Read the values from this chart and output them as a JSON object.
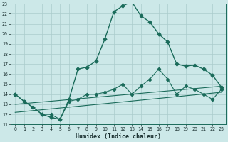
{
  "xlabel": "Humidex (Indice chaleur)",
  "bg_color": "#cce8e8",
  "grid_color": "#aacccc",
  "line_color": "#1a6b5a",
  "xlim": [
    -0.5,
    23.5
  ],
  "ylim": [
    11,
    23
  ],
  "xticks": [
    0,
    1,
    2,
    3,
    4,
    5,
    6,
    7,
    8,
    9,
    10,
    11,
    12,
    13,
    14,
    15,
    16,
    17,
    18,
    19,
    20,
    21,
    22,
    23
  ],
  "yticks": [
    11,
    12,
    13,
    14,
    15,
    16,
    17,
    18,
    19,
    20,
    21,
    22,
    23
  ],
  "series_main_x": [
    0,
    1,
    2,
    3,
    4,
    5,
    6,
    7,
    8,
    9,
    10,
    11,
    12,
    13,
    14,
    15,
    16,
    17,
    18,
    19,
    20,
    21,
    22,
    23
  ],
  "series_main_y": [
    14.0,
    13.3,
    12.7,
    12.0,
    11.7,
    11.5,
    13.5,
    16.5,
    16.7,
    17.3,
    19.5,
    22.2,
    22.8,
    23.2,
    21.8,
    21.2,
    20.0,
    19.2,
    17.0,
    16.8,
    16.9,
    16.5,
    15.9,
    14.7
  ],
  "series_low_x": [
    0,
    1,
    2,
    3,
    4,
    5,
    6,
    7,
    8,
    9,
    10,
    11,
    12,
    13,
    14,
    15,
    16,
    17,
    18,
    19,
    20,
    21,
    22,
    23
  ],
  "series_low_y": [
    14.0,
    13.3,
    12.7,
    12.0,
    12.0,
    11.5,
    13.3,
    13.5,
    14.0,
    14.0,
    14.2,
    14.5,
    15.0,
    14.0,
    14.8,
    15.5,
    16.5,
    15.5,
    14.0,
    14.8,
    14.5,
    14.0,
    13.5,
    14.5
  ],
  "series_line1_x": [
    0,
    23
  ],
  "series_line1_y": [
    13.0,
    14.8
  ],
  "series_line2_x": [
    0,
    23
  ],
  "series_line2_y": [
    12.2,
    14.2
  ]
}
